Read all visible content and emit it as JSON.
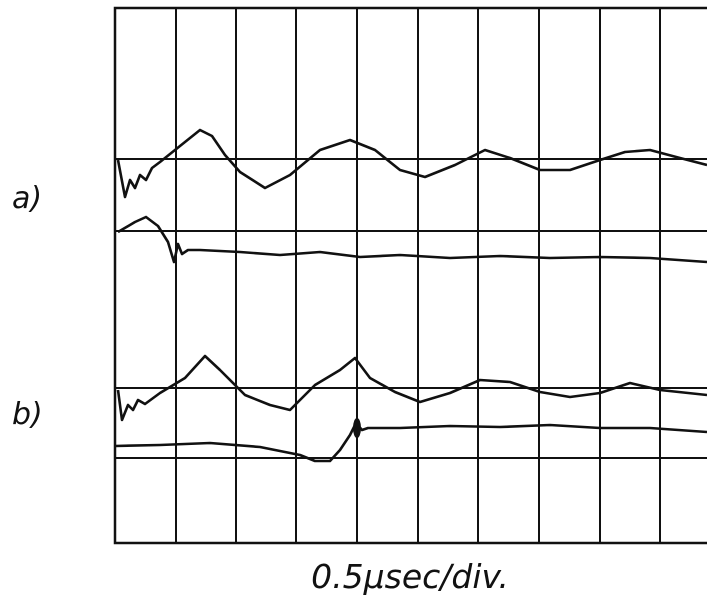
{
  "trace_labels": {
    "a": "a)",
    "b": "b)"
  },
  "caption": "0.5μsec/div."
}
